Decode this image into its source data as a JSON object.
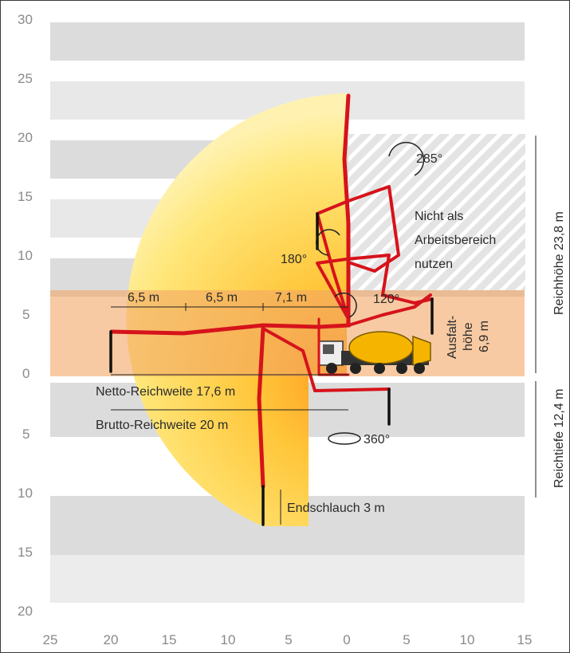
{
  "axes": {
    "y_labels": [
      "30",
      "25",
      "20",
      "15",
      "10",
      "5",
      "0",
      "5",
      "10",
      "15",
      "20"
    ],
    "x_labels": [
      "25",
      "20",
      "15",
      "10",
      "5",
      "0",
      "5",
      "10",
      "15"
    ]
  },
  "labels": {
    "seg1": "6,5 m",
    "seg2": "6,5 m",
    "seg3": "7,1 m",
    "netto": "Netto-Reichweite 17,6 m",
    "brutto": "Brutto-Reichweite 20 m",
    "endschlauch": "Endschlauch 3 m",
    "angle_285": "285°",
    "angle_180": "180°",
    "angle_120": "120°",
    "angle_360": "360°",
    "not_work_1": "Nicht als",
    "not_work_2": "Arbeitsbereich",
    "not_work_3": "nutzen",
    "ausfalt_1": "Ausfalt-",
    "ausfalt_2": "höhe",
    "ausfalt_3": "6,9 m",
    "reichhoehe": "Reichhöhe 23,8 m",
    "reichtiefe": "Reichtiefe 12,4 m"
  },
  "colors": {
    "boom": "#d6131b",
    "reach_yellow": "#ffd84a",
    "band_orange": "#f2a766",
    "truck_yellow": "#f4b400"
  }
}
